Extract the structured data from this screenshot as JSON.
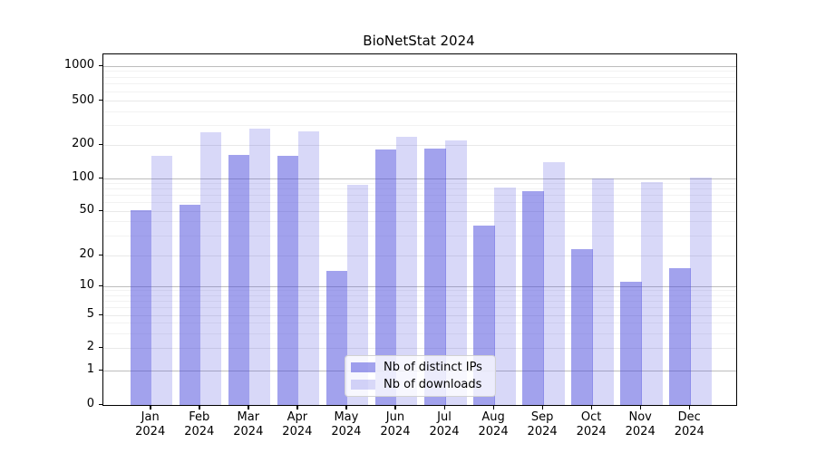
{
  "chart_data": {
    "type": "bar",
    "title": "BioNetStat 2024",
    "year": "2024",
    "months": [
      "Jan",
      "Feb",
      "Mar",
      "Apr",
      "May",
      "Jun",
      "Jul",
      "Aug",
      "Sep",
      "Oct",
      "Nov",
      "Dec"
    ],
    "categories": [
      "Jan 2024",
      "Feb 2024",
      "Mar 2024",
      "Apr 2024",
      "May 2024",
      "Jun 2024",
      "Jul 2024",
      "Aug 2024",
      "Sep 2024",
      "Oct 2024",
      "Nov 2024",
      "Dec 2024"
    ],
    "series": [
      {
        "name": "Nb of distinct IPs",
        "values": [
          51,
          57,
          163,
          160,
          14,
          182,
          186,
          37,
          76,
          23,
          11,
          15
        ]
      },
      {
        "name": "Nb of downloads",
        "values": [
          160,
          261,
          282,
          266,
          88,
          238,
          219,
          82,
          139,
          100,
          93,
          102
        ]
      }
    ],
    "yscale": "log",
    "yticks": [
      0,
      1,
      2,
      5,
      10,
      20,
      50,
      100,
      200,
      500,
      1000
    ],
    "ylim": [
      0,
      1400
    ],
    "grid": "horizontal, log minors",
    "legend_position": "lower center"
  },
  "colors": {
    "bar_base": "#4646dc",
    "ips_bar_alpha": 0.5,
    "downloads_bar_alpha": 0.21,
    "major_grid": "#bdbdbd",
    "mid_grid": "#e9e9e9",
    "minor_grid": "#f2f2f2",
    "spine": "#000000"
  }
}
